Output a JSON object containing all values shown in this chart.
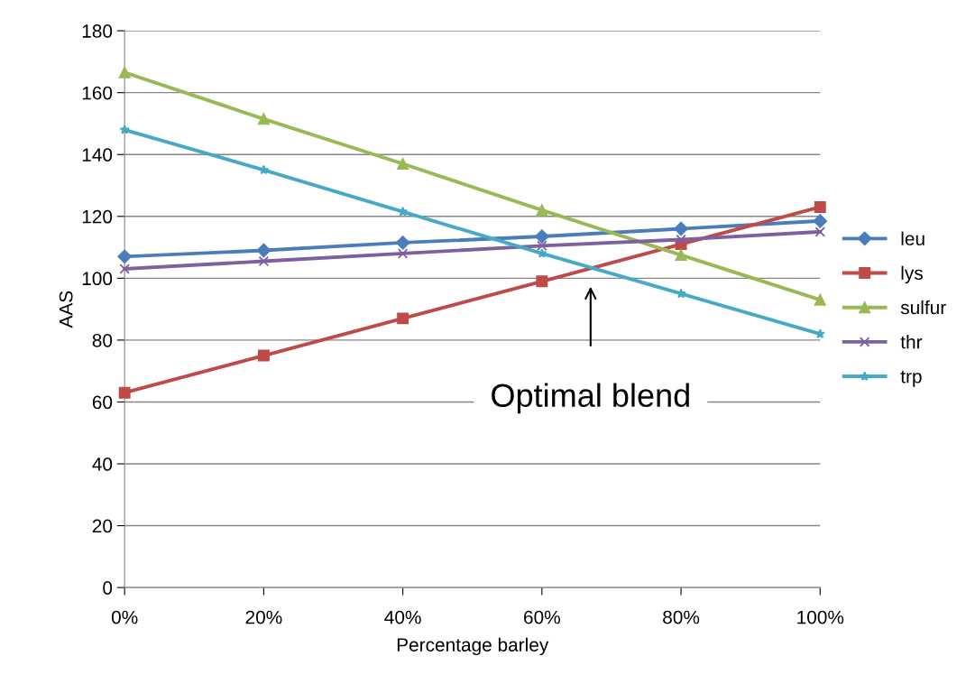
{
  "chart_data": {
    "type": "line",
    "xlabel": "Percentage barley",
    "ylabel": "AAS",
    "x": [
      0,
      20,
      40,
      60,
      80,
      100
    ],
    "xlim": [
      0,
      100
    ],
    "xticks": [
      {
        "value": 0,
        "label": "0%"
      },
      {
        "value": 20,
        "label": "20%"
      },
      {
        "value": 40,
        "label": "40%"
      },
      {
        "value": 60,
        "label": "60%"
      },
      {
        "value": 80,
        "label": "80%"
      },
      {
        "value": 100,
        "label": "100%"
      }
    ],
    "ylim": [
      0,
      180
    ],
    "yticks": [
      0,
      20,
      40,
      60,
      80,
      100,
      120,
      140,
      160,
      180
    ],
    "grid": "y",
    "legend": "right",
    "line_style": "solid",
    "series": [
      {
        "name": "leu",
        "color": "#4a7ebb",
        "marker": "diamond",
        "values": [
          107,
          109,
          111.5,
          113.5,
          116,
          118.5
        ]
      },
      {
        "name": "lys",
        "color": "#be4b48",
        "marker": "square",
        "values": [
          63,
          75,
          87,
          99,
          111,
          123
        ]
      },
      {
        "name": "sulfur",
        "color": "#98b954",
        "marker": "triangle",
        "values": [
          166.5,
          151.5,
          137,
          122,
          107.5,
          93
        ]
      },
      {
        "name": "thr",
        "color": "#7d60a0",
        "marker": "cross",
        "values": [
          103,
          105.5,
          108,
          110.5,
          112.5,
          115
        ]
      },
      {
        "name": "trp",
        "color": "#46aac5",
        "marker": "star",
        "values": [
          148,
          135,
          121.5,
          108,
          95,
          82
        ]
      }
    ],
    "annotations": [
      "Optimal blend"
    ]
  }
}
